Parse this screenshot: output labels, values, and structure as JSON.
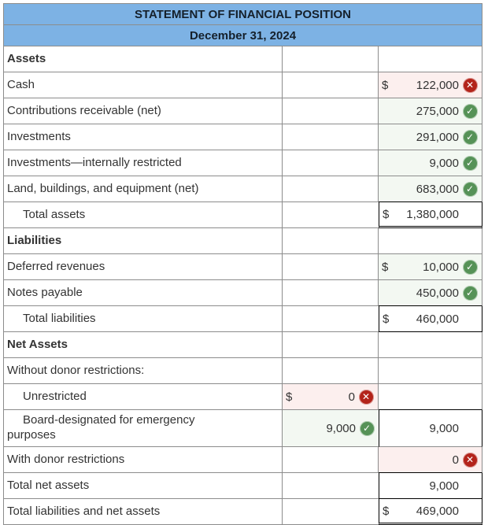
{
  "header": {
    "title": "STATEMENT OF FINANCIAL POSITION",
    "subtitle": "December 31, 2024"
  },
  "colors": {
    "header_bg": "#7db2e4",
    "header_text": "#15202b",
    "grid": "#8c8c8c",
    "text": "#333333",
    "correct_bg": "#f3f8f2",
    "wrong_bg": "#fcefee",
    "correct_icon": "#569257",
    "wrong_icon": "#b3231a"
  },
  "icons": {
    "correct_glyph": "✓",
    "wrong_glyph": "✕"
  },
  "rows": [
    {
      "label": "Assets",
      "style": "section"
    },
    {
      "label": "Cash",
      "c2": {
        "dollar": "$",
        "value": "122,000",
        "status": "wrong"
      }
    },
    {
      "label": "Contributions receivable (net)",
      "c2": {
        "value": "275,000",
        "status": "correct"
      }
    },
    {
      "label": "Investments",
      "c2": {
        "value": "291,000",
        "status": "correct"
      }
    },
    {
      "label": "Investments—internally restricted",
      "c2": {
        "value": "9,000",
        "status": "correct"
      }
    },
    {
      "label": "Land, buildings, and equipment (net)",
      "c2": {
        "value": "683,000",
        "status": "correct"
      }
    },
    {
      "label": "Total assets",
      "style": "indent",
      "c2": {
        "dollar": "$",
        "value": "1,380,000",
        "box": "total-double"
      }
    },
    {
      "label": "Liabilities",
      "style": "section"
    },
    {
      "label": "Deferred revenues",
      "c2": {
        "dollar": "$",
        "value": "10,000",
        "status": "correct"
      }
    },
    {
      "label": "Notes payable",
      "c2": {
        "value": "450,000",
        "status": "correct"
      }
    },
    {
      "label": "Total liabilities",
      "style": "indent",
      "c2": {
        "dollar": "$",
        "value": "460,000",
        "box": "total"
      }
    },
    {
      "label": "Net Assets",
      "style": "section"
    },
    {
      "label": "Without donor restrictions:"
    },
    {
      "label": "Unrestricted",
      "style": "indent",
      "c1": {
        "dollar": "$",
        "value": "0",
        "status": "wrong"
      }
    },
    {
      "label": "Board-designated for emergency\npurposes",
      "style": "indent",
      "tall": true,
      "c1": {
        "value": "9,000",
        "status": "correct"
      },
      "c2": {
        "value": "9,000",
        "box": "total-open"
      }
    },
    {
      "label": "With donor restrictions",
      "c2": {
        "value": "0",
        "status": "wrong"
      }
    },
    {
      "label": "Total net assets",
      "c2": {
        "value": "9,000",
        "box": "total"
      }
    },
    {
      "label": "Total liabilities and net assets",
      "c2": {
        "dollar": "$",
        "value": "469,000",
        "box": "total-double"
      }
    }
  ]
}
